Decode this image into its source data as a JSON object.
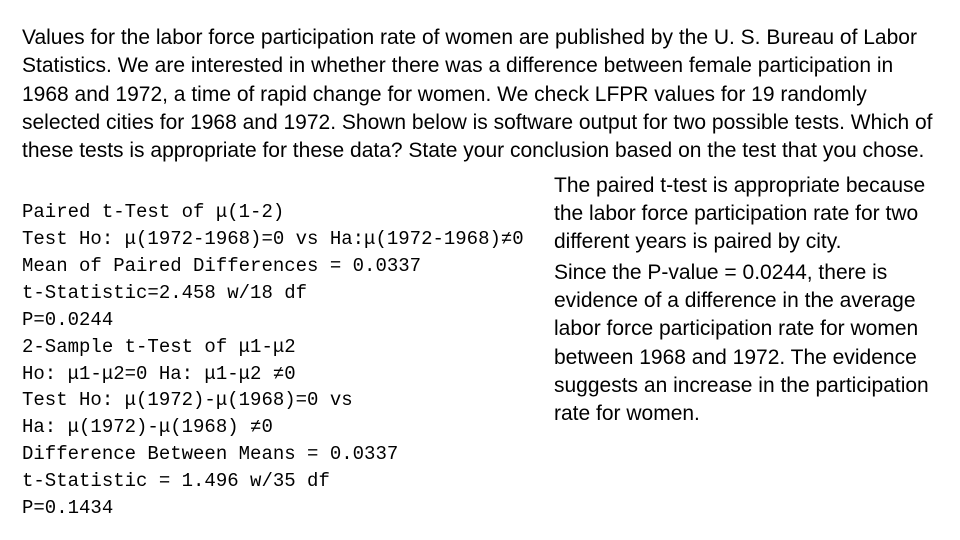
{
  "question": "Values for the labor force participation rate of women are published by the U. S. Bureau of Labor Statistics. We are interested in whether there was a difference between female participation in 1968 and 1972, a time of rapid change for women. We check LFPR values for 19 randomly selected cities for 1968 and 1972. Shown below is software output for two possible tests. Which of these tests is appropriate for these data? State your conclusion based on the test that you chose.",
  "output": {
    "l1": "Paired t-Test of μ(1-2)",
    "l2": "Test Ho: μ(1972-1968)=0 vs Ha:μ(1972-1968)≠0",
    "l3": "Mean of Paired Differences = 0.0337",
    "l4": "t-Statistic=2.458 w/18 df",
    "l5": "P=0.0244",
    "l6": "2-Sample t-Test of μ1-μ2",
    "l7": "Ho: μ1-μ2=0 Ha: μ1-μ2 ≠0",
    "l8": "Test Ho: μ(1972)-μ(1968)=0 vs",
    "l9": "Ha: μ(1972)-μ(1968) ≠0",
    "l10": "Difference Between Means = 0.0337",
    "l11": "t-Statistic = 1.496 w/35 df",
    "l12": "P=0.1434"
  },
  "answer": {
    "p1": "The paired t-test is appropriate because the labor force participation rate for two different years is paired by city.",
    "p2": "Since the P-value = 0.0244, there is evidence of a difference in the average labor force participation rate for women between 1968 and 1972. The evidence suggests an increase in the participation rate for women."
  }
}
